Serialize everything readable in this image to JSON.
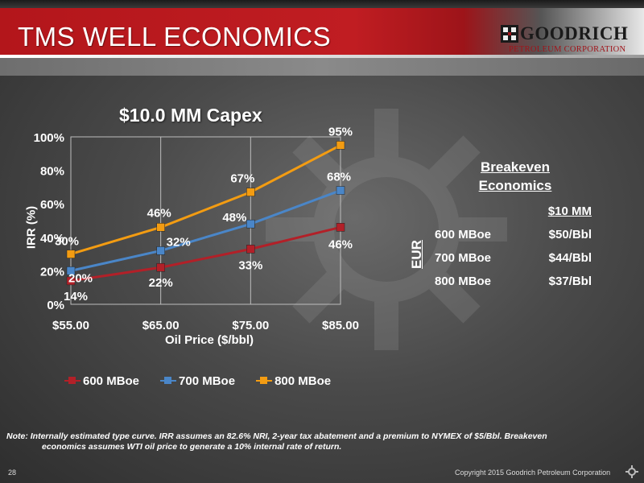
{
  "slide": {
    "title": "TMS WELL ECONOMICS",
    "page_number": "28",
    "copyright": "Copyright 2015 Goodrich Petroleum Corporation",
    "logo_name": "GOODRICH",
    "logo_sub": "PETROLEUM CORPORATION",
    "note_line1": "Note:  Internally estimated type curve.  IRR assumes an 82.6% NRI, 2-year tax abatement and a premium to NYMEX of $5/Bbl.  Breakeven",
    "note_line2": "economics assumes WTI oil price to generate  a 10% internal rate of return."
  },
  "breakeven": {
    "title_line1": "Breakeven",
    "title_line2": "Economics",
    "column_header": "$10 MM",
    "eur_label": "EUR",
    "rows": [
      {
        "label": "600 MBoe",
        "value": "$50/Bbl"
      },
      {
        "label": "700 MBoe",
        "value": "$44/Bbl"
      },
      {
        "label": "800 MBoe",
        "value": "$37/Bbl"
      }
    ]
  },
  "chart_data": {
    "type": "line",
    "title": "$10.0 MM Capex",
    "xlabel": "Oil Price ($/bbl)",
    "ylabel": "IRR (%)",
    "categories": [
      "$55.00",
      "$65.00",
      "$75.00",
      "$85.00"
    ],
    "yticks": [
      "0%",
      "20%",
      "40%",
      "60%",
      "80%",
      "100%"
    ],
    "ylim": [
      0,
      100
    ],
    "grid": "vertical",
    "legend": "bottom",
    "series": [
      {
        "name": "600 MBoe",
        "color": "#b22028",
        "values": [
          14,
          22,
          33,
          46
        ],
        "labels": [
          "14%",
          "22%",
          "33%",
          "46%"
        ]
      },
      {
        "name": "700 MBoe",
        "color": "#4a86c8",
        "values": [
          20,
          32,
          48,
          68
        ],
        "labels": [
          "20%",
          "32%",
          "48%",
          "68%"
        ]
      },
      {
        "name": "800 MBoe",
        "color": "#f39c12",
        "values": [
          30,
          46,
          67,
          95
        ],
        "labels": [
          "30%",
          "46%",
          "67%",
          "95%"
        ]
      }
    ]
  }
}
